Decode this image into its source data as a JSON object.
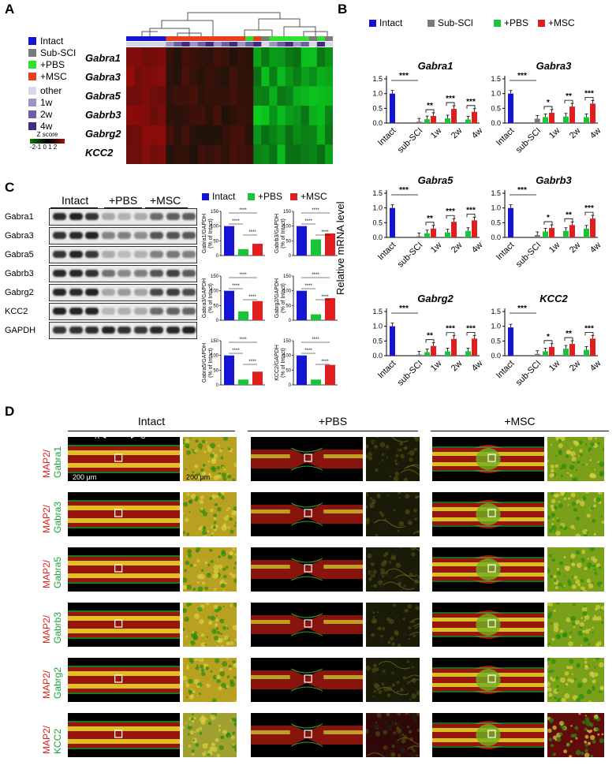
{
  "panels": {
    "a": "A",
    "b": "B",
    "c": "C",
    "d": "D"
  },
  "colors": {
    "intact": "#1414d2",
    "subsci": "#7a7a7a",
    "pbs": "#18c43a",
    "msc": "#e01e1e",
    "other": "#d7d7ea",
    "w1": "#9d95c8",
    "w2": "#6e5ea8",
    "w4": "#412a85"
  },
  "heatmap": {
    "legend": [
      {
        "label": "Intact",
        "color": "#1414d2"
      },
      {
        "label": "Sub-SCI",
        "color": "#7a7a7a"
      },
      {
        "label": "+PBS",
        "color": "#2ee22e"
      },
      {
        "label": "+MSC",
        "color": "#e8401c"
      },
      {
        "label": "other",
        "color": "#d7d7ea"
      },
      {
        "label": "1w",
        "color": "#9d95c8"
      },
      {
        "label": "2w",
        "color": "#6e5ea8"
      },
      {
        "label": "4w",
        "color": "#412a85"
      }
    ],
    "zscore_title": "Z score",
    "zscore_ticks": "-2-1 0 1 2",
    "genes": [
      "Gabra1",
      "Gabra3",
      "Gabra5",
      "Gabrb3",
      "Gabrg2",
      "KCC2"
    ]
  },
  "qpcr": {
    "legend": [
      {
        "label": "Intact",
        "color": "#1414d2"
      },
      {
        "label": "Sub-SCl",
        "color": "#7a7a7a"
      },
      {
        "label": "+PBS",
        "color": "#18c43a"
      },
      {
        "label": "+MSC",
        "color": "#e01e1e"
      }
    ],
    "ylabel": "Relative mRNA level",
    "x_labels": [
      "Intact",
      "sub-SCI",
      "1w",
      "2w",
      "4w"
    ],
    "y_ticks": [
      "0.0",
      "0.5",
      "1.0",
      "1.5"
    ]
  },
  "chart_data": [
    {
      "type": "bar",
      "title": "Gabra1",
      "categories": [
        "Intact",
        "sub-SCI",
        "1w",
        "2w",
        "4w"
      ],
      "ylim": [
        0,
        1.5
      ],
      "series": [
        {
          "name": "Intact",
          "values": [
            1.0,
            null,
            null,
            null,
            null
          ]
        },
        {
          "name": "Sub-SCl",
          "values": [
            null,
            0.05,
            null,
            null,
            null
          ]
        },
        {
          "name": "+PBS",
          "values": [
            null,
            null,
            0.13,
            0.16,
            0.12
          ]
        },
        {
          "name": "+MSC",
          "values": [
            null,
            null,
            0.24,
            0.48,
            0.38
          ]
        }
      ],
      "sig": [
        "***",
        "**",
        "***",
        "***"
      ]
    },
    {
      "type": "bar",
      "title": "Gabra3",
      "categories": [
        "Intact",
        "sub-SCI",
        "1w",
        "2w",
        "4w"
      ],
      "ylim": [
        0,
        1.5
      ],
      "series": [
        {
          "name": "Intact",
          "values": [
            1.0,
            null,
            null,
            null,
            null
          ]
        },
        {
          "name": "Sub-SCl",
          "values": [
            null,
            0.15,
            null,
            null,
            null
          ]
        },
        {
          "name": "+PBS",
          "values": [
            null,
            null,
            0.2,
            0.22,
            0.2
          ]
        },
        {
          "name": "+MSC",
          "values": [
            null,
            null,
            0.35,
            0.56,
            0.66
          ]
        }
      ],
      "sig": [
        "***",
        "*",
        "**",
        "***"
      ]
    },
    {
      "type": "bar",
      "title": "Gabra5",
      "categories": [
        "Intact",
        "sub-SCI",
        "1w",
        "2w",
        "4w"
      ],
      "ylim": [
        0,
        1.5
      ],
      "series": [
        {
          "name": "Intact",
          "values": [
            1.0,
            null,
            null,
            null,
            null
          ]
        },
        {
          "name": "Sub-SCl",
          "values": [
            null,
            0.04,
            null,
            null,
            null
          ]
        },
        {
          "name": "+PBS",
          "values": [
            null,
            null,
            0.14,
            0.17,
            0.22
          ]
        },
        {
          "name": "+MSC",
          "values": [
            null,
            null,
            0.3,
            0.53,
            0.58
          ]
        }
      ],
      "sig": [
        "***",
        "**",
        "***",
        "***"
      ]
    },
    {
      "type": "bar",
      "title": "Gabrb3",
      "categories": [
        "Intact",
        "sub-SCI",
        "1w",
        "2w",
        "4w"
      ],
      "ylim": [
        0,
        1.5
      ],
      "series": [
        {
          "name": "Intact",
          "values": [
            1.0,
            null,
            null,
            null,
            null
          ]
        },
        {
          "name": "Sub-SCl",
          "values": [
            null,
            0.08,
            null,
            null,
            null
          ]
        },
        {
          "name": "+PBS",
          "values": [
            null,
            null,
            0.2,
            0.22,
            0.3
          ]
        },
        {
          "name": "+MSC",
          "values": [
            null,
            null,
            0.32,
            0.42,
            0.64
          ]
        }
      ],
      "sig": [
        "***",
        "*",
        "**",
        "***"
      ]
    },
    {
      "type": "bar",
      "title": "Gabrg2",
      "categories": [
        "Intact",
        "sub-SCI",
        "1w",
        "2w",
        "4w"
      ],
      "ylim": [
        0,
        1.5
      ],
      "series": [
        {
          "name": "Intact",
          "values": [
            1.0,
            null,
            null,
            null,
            null
          ]
        },
        {
          "name": "Sub-SCl",
          "values": [
            null,
            0.04,
            null,
            null,
            null
          ]
        },
        {
          "name": "+PBS",
          "values": [
            null,
            null,
            0.12,
            0.15,
            0.15
          ]
        },
        {
          "name": "+MSC",
          "values": [
            null,
            null,
            0.33,
            0.57,
            0.58
          ]
        }
      ],
      "sig": [
        "***",
        "**",
        "***",
        "***"
      ]
    },
    {
      "type": "bar",
      "title": "KCC2",
      "categories": [
        "Intact",
        "sub-SCI",
        "1w",
        "2w",
        "4w"
      ],
      "ylim": [
        0,
        1.5
      ],
      "series": [
        {
          "name": "Intact",
          "values": [
            0.96,
            null,
            null,
            null,
            null
          ]
        },
        {
          "name": "Sub-SCl",
          "values": [
            null,
            0.06,
            null,
            null,
            null
          ]
        },
        {
          "name": "+PBS",
          "values": [
            null,
            null,
            0.15,
            0.24,
            0.2
          ]
        },
        {
          "name": "+MSC",
          "values": [
            null,
            null,
            0.3,
            0.4,
            0.58
          ]
        }
      ],
      "sig": [
        "***",
        "*",
        "**",
        "***"
      ]
    }
  ],
  "western": {
    "groups": [
      "Intact",
      "+PBS",
      "+MSC"
    ],
    "bands": [
      "Gabra1",
      "Gabra3",
      "Gabra5",
      "Gabrb3",
      "Gabrg2",
      "KCC2",
      "GAPDH"
    ],
    "legend": [
      {
        "label": "Intact",
        "color": "#1414d2"
      },
      {
        "label": "+PBS",
        "color": "#18c43a"
      },
      {
        "label": "+MSC",
        "color": "#e01e1e"
      }
    ],
    "quant": [
      {
        "ylabel": "Gabra1/GAPDH\n(% of Intact)",
        "values": [
          100,
          22,
          40
        ],
        "sig": [
          "****",
          "****",
          "****"
        ]
      },
      {
        "ylabel": "Gabrb3/GAPDH\n(% of Intact)",
        "values": [
          100,
          55,
          75
        ],
        "sig": [
          "****",
          "****",
          "****"
        ]
      },
      {
        "ylabel": "Gabra3/GAPDH\n(% of Intact)",
        "values": [
          100,
          30,
          65
        ],
        "sig": [
          "****",
          "****",
          "****"
        ]
      },
      {
        "ylabel": "Gabrg2/GAPDH\n(% of Intact)",
        "values": [
          100,
          20,
          75
        ],
        "sig": [
          "****",
          "****",
          "****"
        ]
      },
      {
        "ylabel": "Gabra5/GAPDH\n(% of Intact)",
        "values": [
          100,
          18,
          45
        ],
        "sig": [
          "****",
          "****",
          "****"
        ]
      },
      {
        "ylabel": "KCC2/GAPDH\n(% of Intact)",
        "values": [
          100,
          18,
          68
        ],
        "sig": [
          "****",
          "****",
          "****"
        ]
      }
    ],
    "qticks": [
      "0",
      "50",
      "100",
      "150"
    ]
  },
  "micro": {
    "headers": [
      "Intact",
      "+PBS",
      "+MSC"
    ],
    "rc": "R",
    "rc2": "C",
    "scale1": "200 μm",
    "scale2": "200 μm",
    "rows": [
      {
        "red": "MAP2/",
        "green": "Gabra1"
      },
      {
        "red": "MAP2/",
        "green": "Gabra3"
      },
      {
        "red": "MAP2/",
        "green": "Gabra5"
      },
      {
        "red": "MAP2/",
        "green": "Gabrb3"
      },
      {
        "red": "MAP2/",
        "green": "Gabrg2"
      },
      {
        "red": "MAP2/",
        "green": "KCC2"
      }
    ]
  }
}
